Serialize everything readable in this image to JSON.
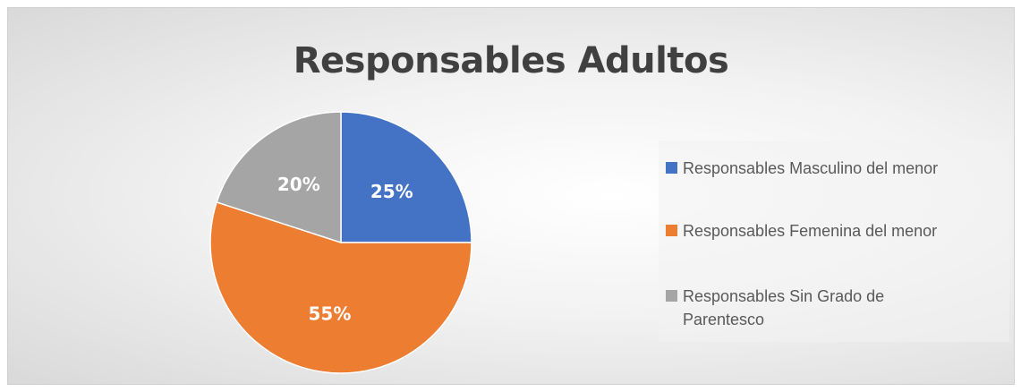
{
  "chart_data": {
    "type": "pie",
    "title": "Responsables Adultos",
    "categories": [
      "Responsables Masculino del menor",
      "Responsables Femenina del menor",
      "Responsables Sin Grado de Parentesco"
    ],
    "values": [
      25,
      55,
      20
    ],
    "data_labels": [
      "25%",
      "55%",
      "20%"
    ],
    "colors": [
      "#4472c4",
      "#ed7d31",
      "#a5a5a5"
    ],
    "legend_position": "right",
    "start_angle": "12 o'clock, clockwise"
  }
}
